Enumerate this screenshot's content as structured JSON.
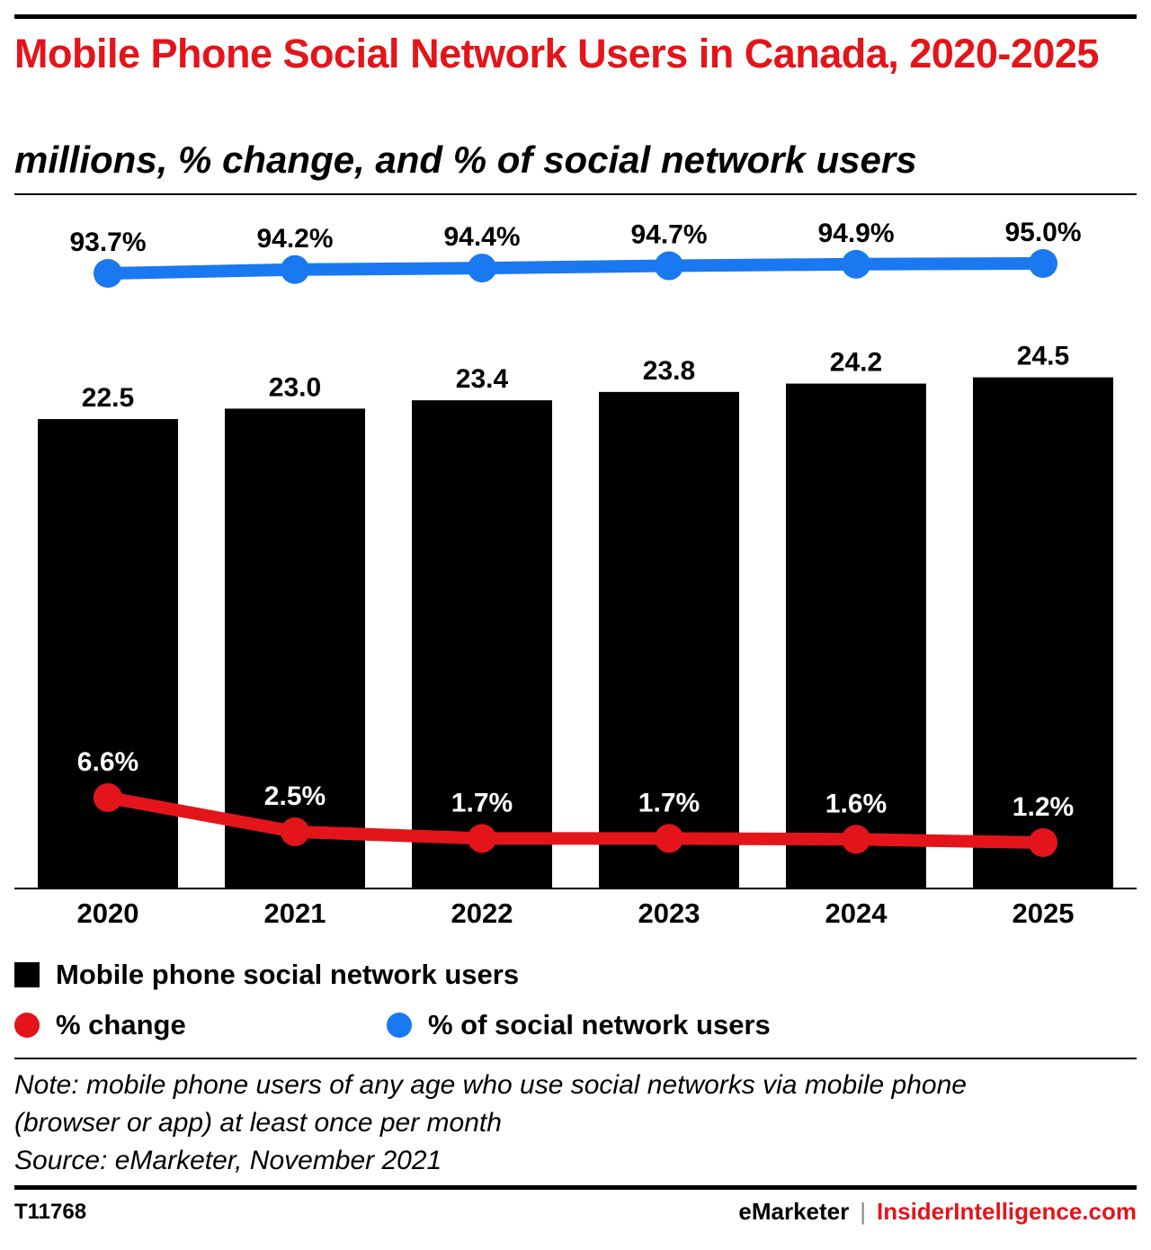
{
  "header": {
    "title": "Mobile Phone Social Network Users in Canada, 2020-2025",
    "subtitle": "millions, % change, and % of social network users"
  },
  "chart_data": {
    "type": "bar",
    "categories": [
      "2020",
      "2021",
      "2022",
      "2023",
      "2024",
      "2025"
    ],
    "series": [
      {
        "name": "Mobile phone social network users",
        "type": "bar",
        "values": [
          22.5,
          23.0,
          23.4,
          23.8,
          24.2,
          24.5
        ],
        "labels": [
          "22.5",
          "23.0",
          "23.4",
          "23.8",
          "24.2",
          "24.5"
        ],
        "color": "#000000"
      },
      {
        "name": "% change",
        "type": "line",
        "values": [
          6.6,
          2.5,
          1.7,
          1.7,
          1.6,
          1.2
        ],
        "labels": [
          "6.6%",
          "2.5%",
          "1.7%",
          "1.7%",
          "1.6%",
          "1.2%"
        ],
        "color": "#e3151a"
      },
      {
        "name": "% of social network users",
        "type": "line",
        "values": [
          93.7,
          94.2,
          94.4,
          94.7,
          94.9,
          95.0
        ],
        "labels": [
          "93.7%",
          "94.2%",
          "94.4%",
          "94.7%",
          "94.9%",
          "95.0%"
        ],
        "color": "#1a78f0"
      }
    ],
    "legend_position": "bottom",
    "grid": false
  },
  "legend": {
    "bar_label": "Mobile phone social network users",
    "change_label": "% change",
    "share_label": "% of social network users"
  },
  "note": {
    "line1": "Note: mobile phone users of any age who use social networks via mobile phone",
    "line2": "(browser or app) at least once per month",
    "source": "Source: eMarketer, November 2021"
  },
  "footer": {
    "id": "T11768",
    "brand1": "eMarketer",
    "separator": "|",
    "brand2": "InsiderIntelligence.com"
  }
}
